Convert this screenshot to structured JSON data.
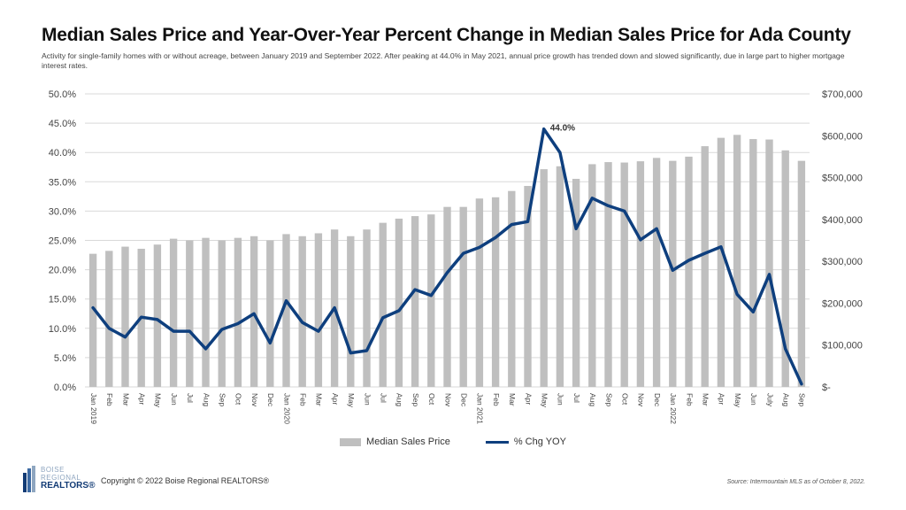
{
  "title": "Median Sales Price and Year-Over-Year Percent Change in Median Sales Price for Ada County",
  "subtitle": "Activity for single-family homes with or without acreage, between January 2019 and September 2022. After peaking at 44.0% in May 2021, annual price growth has trended down and slowed significantly, due in large part to higher mortgage interest rates.",
  "colors": {
    "bars": "#bfbfbf",
    "line": "#0e3f7e",
    "grid": "#d9d9d9"
  },
  "chart_data": {
    "type": "bar",
    "categories": [
      "Jan 2019",
      "Feb",
      "Mar",
      "Apr",
      "May",
      "Jun",
      "Jul",
      "Aug",
      "Sep",
      "Oct",
      "Nov",
      "Dec",
      "Jan 2020",
      "Feb",
      "Mar",
      "Apr",
      "May",
      "Jun",
      "Jul",
      "Aug",
      "Sep",
      "Oct",
      "Nov",
      "Dec",
      "Jan 2021",
      "Feb",
      "Mar",
      "Apr",
      "May",
      "Jun",
      "Jul",
      "Aug",
      "Sep",
      "Oct",
      "Nov",
      "Dec",
      "Jan 2022",
      "Feb",
      "Mar",
      "Apr",
      "May",
      "Jun",
      "July",
      "Aug",
      "Sep"
    ],
    "series": [
      {
        "name": "Median Sales Price",
        "type": "bar",
        "axis": "right",
        "values": [
          318000,
          325000,
          335000,
          330000,
          340000,
          354000,
          350000,
          356000,
          350000,
          356000,
          360000,
          350000,
          365000,
          360000,
          367000,
          376000,
          360000,
          376000,
          392000,
          402000,
          408000,
          412000,
          430000,
          430000,
          450000,
          453000,
          468000,
          480000,
          520000,
          527000,
          497000,
          532000,
          537000,
          536000,
          539000,
          547000,
          540000,
          550000,
          575000,
          595000,
          602000,
          592000,
          591000,
          565000,
          540000
        ]
      },
      {
        "name": "% Chg YOY",
        "type": "line",
        "axis": "left",
        "values": [
          13.5,
          10.0,
          8.5,
          11.9,
          11.5,
          9.5,
          9.5,
          6.5,
          9.8,
          10.8,
          12.5,
          7.5,
          14.7,
          11.0,
          9.5,
          13.5,
          5.8,
          6.2,
          11.8,
          13.0,
          16.6,
          15.6,
          19.5,
          22.8,
          23.8,
          25.5,
          27.7,
          28.2,
          44.0,
          40.0,
          27.0,
          32.2,
          30.9,
          30.0,
          25.1,
          27.0,
          19.9,
          21.6,
          22.8,
          23.9,
          15.8,
          12.8,
          19.2,
          6.5,
          0.5
        ]
      }
    ],
    "y_left": {
      "min": 0,
      "max": 50,
      "ticks": [
        "0.0%",
        "5.0%",
        "10.0%",
        "15.0%",
        "20.0%",
        "25.0%",
        "30.0%",
        "35.0%",
        "40.0%",
        "45.0%",
        "50.0%"
      ]
    },
    "y_right": {
      "min": 0,
      "max": 700000,
      "ticks": [
        "$-",
        "$100,000",
        "$200,000",
        "$300,000",
        "$400,000",
        "$500,000",
        "$600,000",
        "$700,000"
      ]
    },
    "annotations": [
      {
        "category_index": 28,
        "text": "44.0%"
      }
    ],
    "grid": true,
    "legend": "bottom"
  },
  "footer": {
    "logo_line1": "BOISE",
    "logo_line2": "REGIONAL",
    "logo_line3": "REALTORS®",
    "copyright": "Copyright © 2022 Boise Regional REALTORS®",
    "source": "Source: Intermountain MLS as of October 8, 2022."
  }
}
